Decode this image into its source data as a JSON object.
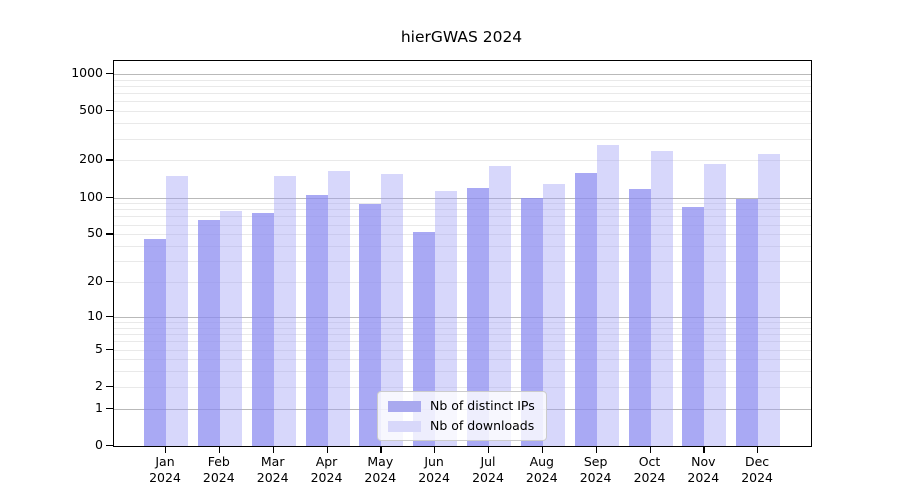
{
  "title": "hierGWAS 2024",
  "chart_data": {
    "type": "bar",
    "title": "hierGWAS 2024",
    "categories": [
      "Jan 2024",
      "Feb 2024",
      "Mar 2024",
      "Apr 2024",
      "May 2024",
      "Jun 2024",
      "Jul 2024",
      "Aug 2024",
      "Sep 2024",
      "Oct 2024",
      "Nov 2024",
      "Dec 2024"
    ],
    "series": [
      {
        "name": "Nb of distinct IPs",
        "legend_color": "#a9a9ef",
        "fill": "rgba(140,140,240,0.75)",
        "values": [
          46,
          66,
          75,
          105,
          88,
          52,
          120,
          100,
          157,
          118,
          83,
          97
        ]
      },
      {
        "name": "Nb of downloads",
        "legend_color": "#d8d8fa",
        "fill": "rgba(160,160,245,0.42)",
        "values": [
          151,
          78,
          150,
          165,
          155,
          112,
          180,
          130,
          265,
          240,
          188,
          225
        ]
      }
    ],
    "yscale": "log1p",
    "yticks": [
      0,
      1,
      2,
      5,
      10,
      20,
      50,
      100,
      200,
      500,
      1000
    ],
    "ylim": [
      0,
      1270
    ],
    "xlabel": "",
    "ylabel": "",
    "grid": "horizontal",
    "legend_position": "lower-center"
  },
  "colors": {
    "axis": "#000000",
    "grid_major": "#b9b9b9",
    "grid_minor": "#e9e9e9",
    "background": "#ffffff"
  }
}
